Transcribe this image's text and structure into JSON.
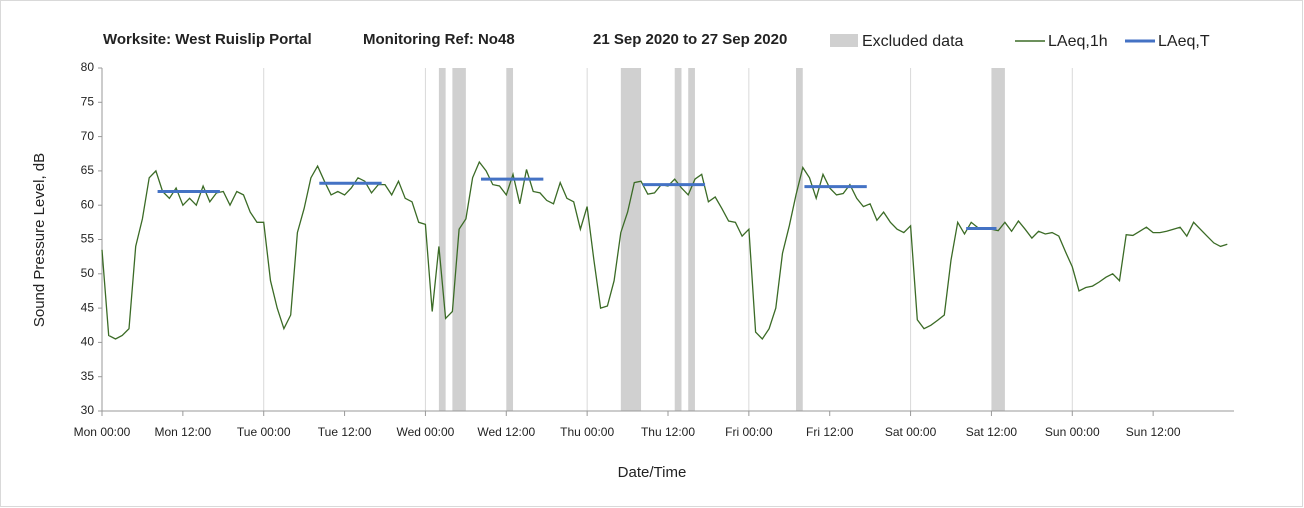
{
  "chart_data": {
    "type": "line",
    "title": [
      "Worksite: West Ruislip Portal",
      "Monitoring Ref: No48",
      "21 Sep 2020 to 27 Sep 2020"
    ],
    "xlabel": "Date/Time",
    "ylabel": "Sound Pressure Level, dB",
    "xlim": [
      0,
      168
    ],
    "ylim": [
      30,
      80
    ],
    "yticks": [
      30,
      35,
      40,
      45,
      50,
      55,
      60,
      65,
      70,
      75,
      80
    ],
    "xticks": [
      {
        "value": 0,
        "label": "Mon 00:00"
      },
      {
        "value": 12,
        "label": "Mon 12:00"
      },
      {
        "value": 24,
        "label": "Tue 00:00"
      },
      {
        "value": 36,
        "label": "Tue 12:00"
      },
      {
        "value": 48,
        "label": "Wed 00:00"
      },
      {
        "value": 60,
        "label": "Wed 12:00"
      },
      {
        "value": 72,
        "label": "Thu 00:00"
      },
      {
        "value": 84,
        "label": "Thu 12:00"
      },
      {
        "value": 96,
        "label": "Fri 00:00"
      },
      {
        "value": 108,
        "label": "Fri 12:00"
      },
      {
        "value": 120,
        "label": "Sat 00:00"
      },
      {
        "value": 132,
        "label": "Sat 12:00"
      },
      {
        "value": 144,
        "label": "Sun 00:00"
      },
      {
        "value": 156,
        "label": "Sun 12:00"
      }
    ],
    "excluded": {
      "name": "Excluded data",
      "color": "#d0d0d0",
      "ranges": [
        [
          50,
          51
        ],
        [
          52,
          54
        ],
        [
          60,
          61
        ],
        [
          77,
          80
        ],
        [
          85,
          86
        ],
        [
          87,
          88
        ],
        [
          103,
          104
        ],
        [
          132,
          134
        ]
      ]
    },
    "series": [
      {
        "name": "LAeq,1h",
        "color": "#3b6b26",
        "x": [
          0,
          1,
          2,
          3,
          4,
          5,
          6,
          7,
          8,
          9,
          10,
          11,
          12,
          13,
          14,
          15,
          16,
          17,
          18,
          19,
          20,
          21,
          22,
          23,
          24,
          25,
          26,
          27,
          28,
          29,
          30,
          31,
          32,
          33,
          34,
          35,
          36,
          37,
          38,
          39,
          40,
          41,
          42,
          43,
          44,
          45,
          46,
          47,
          48,
          49,
          50,
          51,
          52,
          53,
          54,
          55,
          56,
          57,
          58,
          59,
          60,
          61,
          62,
          63,
          64,
          65,
          66,
          67,
          68,
          69,
          70,
          71,
          72,
          73,
          74,
          75,
          76,
          77,
          78,
          79,
          80,
          81,
          82,
          83,
          84,
          85,
          86,
          87,
          88,
          89,
          90,
          91,
          92,
          93,
          94,
          95,
          96,
          97,
          98,
          99,
          100,
          101,
          102,
          103,
          104,
          105,
          106,
          107,
          108,
          109,
          110,
          111,
          112,
          113,
          114,
          115,
          116,
          117,
          118,
          119,
          120,
          121,
          122,
          123,
          124,
          125,
          126,
          127,
          128,
          129,
          130,
          131,
          132,
          133,
          134,
          135,
          136,
          137,
          138,
          139,
          140,
          141,
          142,
          143,
          144,
          145,
          146,
          147,
          148,
          149,
          150,
          151,
          152,
          153,
          154,
          155,
          156,
          157,
          158,
          159,
          160,
          161,
          162,
          163,
          164,
          165,
          166,
          167
        ],
        "values": [
          53.5,
          41,
          40.5,
          41,
          42,
          54,
          58,
          64,
          65,
          62,
          61,
          62.5,
          60,
          61,
          60,
          62.8,
          60.5,
          61.8,
          62,
          60,
          62,
          61.5,
          59,
          57.5,
          57.5,
          49,
          45,
          42,
          44,
          56,
          59.5,
          64,
          65.7,
          63.5,
          61.5,
          62,
          61.5,
          62.5,
          64,
          63.5,
          61.8,
          63,
          63,
          61.5,
          63.5,
          61,
          60.5,
          57.5,
          57.2,
          44.5,
          54,
          43.5,
          44.5,
          56.5,
          58,
          64,
          66.3,
          65,
          63,
          62.8,
          61.5,
          64.5,
          60.2,
          65.2,
          62,
          61.8,
          60.7,
          60.2,
          63.3,
          61,
          60.5,
          56.5,
          59.8,
          52,
          45,
          45.3,
          49,
          56,
          59,
          63.3,
          63.5,
          61.6,
          61.8,
          63,
          62.8,
          63.8,
          62.5,
          61.5,
          63.8,
          64.5,
          60.5,
          61.2,
          59.5,
          57.7,
          57.5,
          55.5,
          56.5,
          41.5,
          40.5,
          42,
          45,
          53,
          57,
          61.5,
          65.5,
          64,
          61,
          64.5,
          62.5,
          61.5,
          61.7,
          63,
          61,
          59.8,
          60.2,
          57.8,
          59,
          57.5,
          56.5,
          56,
          57,
          43.3,
          42,
          42.5,
          43.2,
          44,
          52,
          57.5,
          55.8,
          57.5,
          56.7,
          56.5,
          56.5,
          56.3,
          57.5,
          56.2,
          57.7,
          56.5,
          55.2,
          56.2,
          55.8,
          56,
          55.5,
          53.2,
          51,
          47.5,
          48,
          48.2,
          48.8,
          49.5,
          50,
          49,
          55.7,
          55.6,
          56.2,
          56.8,
          56,
          56,
          56.2,
          56.5,
          56.8,
          55.5,
          57.5,
          56.5,
          55.5,
          54.5,
          54,
          54.3
        ]
      },
      {
        "name": "LAeq,T",
        "color": "#4472c4",
        "segments": [
          {
            "x": [
              8.25,
              17.5
            ],
            "value": 62
          },
          {
            "x": [
              32.25,
              41.5
            ],
            "value": 63.2
          },
          {
            "x": [
              56.25,
              65.5
            ],
            "value": 63.8
          },
          {
            "x": [
              80.25,
              89.5
            ],
            "value": 63
          },
          {
            "x": [
              104.25,
              113.5
            ],
            "value": 62.7
          },
          {
            "x": [
              128.25,
              132.75
            ],
            "value": 56.6
          }
        ]
      }
    ]
  }
}
